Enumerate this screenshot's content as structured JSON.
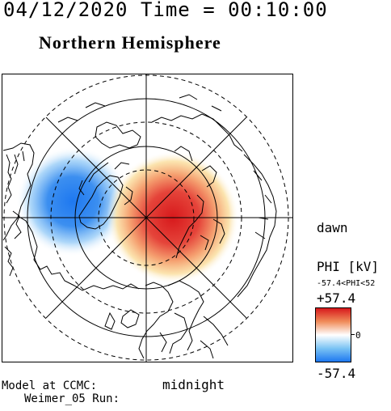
{
  "header": {
    "timestamp_title": "04/12/2020 Time = 00:10:00",
    "hemisphere_title": "Northern Hemisphere"
  },
  "map": {
    "dawn_label": "dawn",
    "midnight_label": "midnight"
  },
  "colorbar": {
    "quantity_label": "PHI [kV]",
    "range_label": "-57.4<PHI<52",
    "max_label": "+57.4",
    "zero_label": "0",
    "min_label": "-57.4",
    "colors": {
      "positive": "#d7191c",
      "neutral": "#ffffff",
      "negative": "#1e78f0"
    }
  },
  "footer": {
    "model_line": "Model at CCMC:",
    "run_line": "Weimer_05 Run:"
  }
}
